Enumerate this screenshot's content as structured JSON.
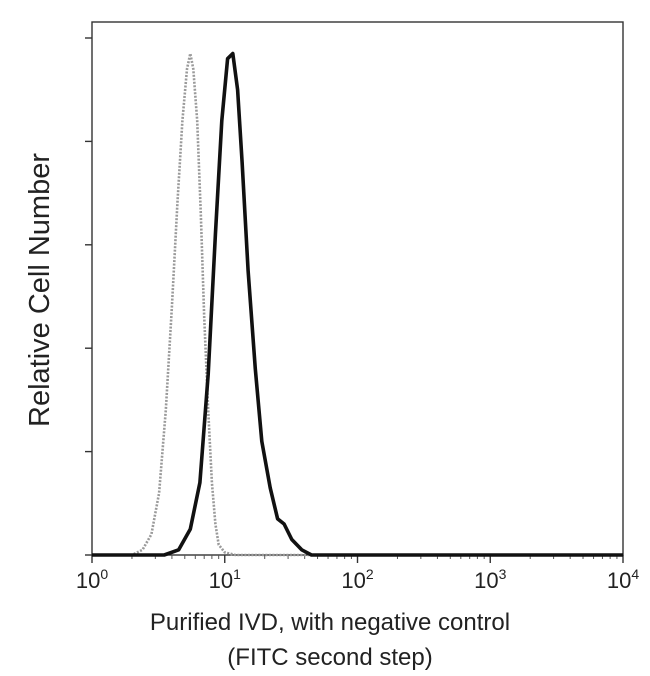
{
  "chart_data": {
    "type": "line",
    "title": "",
    "ylabel": "Relative Cell Number",
    "xlabel_line1": "Purified IVD, with negative control",
    "xlabel_line2": "(FITC second step)",
    "xscale": "log",
    "xlim": [
      1,
      10000
    ],
    "ylim": [
      0,
      100
    ],
    "grid": false,
    "legend": "none",
    "x_ticks": [
      {
        "base": "10",
        "exp": "0",
        "value": 1
      },
      {
        "base": "10",
        "exp": "1",
        "value": 10
      },
      {
        "base": "10",
        "exp": "2",
        "value": 100
      },
      {
        "base": "10",
        "exp": "3",
        "value": 1000
      },
      {
        "base": "10",
        "exp": "4",
        "value": 10000
      }
    ],
    "y_ticks": [
      0,
      20,
      40,
      60,
      80,
      100
    ],
    "series": [
      {
        "role": "negative-control",
        "color": "#9a9a9a",
        "x": [
          1,
          2,
          2.4,
          2.8,
          3.2,
          3.6,
          4.0,
          4.4,
          4.8,
          5.2,
          5.5,
          5.8,
          6.2,
          6.6,
          7.0,
          7.5,
          8.0,
          8.5,
          9.0,
          10,
          12,
          20,
          100,
          1000,
          10000
        ],
        "y": [
          0,
          0,
          1,
          4,
          12,
          28,
          48,
          68,
          84,
          94,
          97,
          94,
          84,
          66,
          46,
          28,
          14,
          6,
          2,
          0.5,
          0,
          0,
          0,
          0,
          0
        ]
      },
      {
        "role": "purified-ivd",
        "color": "#111111",
        "x": [
          1,
          3.5,
          4.5,
          5.5,
          6.5,
          7.5,
          8.5,
          9.5,
          10.5,
          11.5,
          12.5,
          13.5,
          15,
          17,
          19,
          22,
          25,
          28,
          32,
          38,
          45,
          60,
          100,
          1000,
          10000
        ],
        "y": [
          0,
          0,
          1,
          5,
          14,
          35,
          62,
          84,
          96,
          97,
          90,
          76,
          55,
          36,
          22,
          13,
          7,
          6,
          3,
          1,
          0,
          0,
          0,
          0,
          0
        ]
      }
    ]
  }
}
